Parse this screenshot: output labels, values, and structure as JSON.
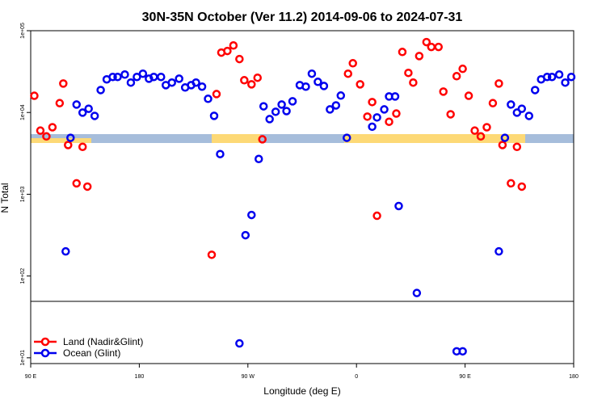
{
  "chart_data": {
    "type": "scatter",
    "title": "30N-35N October (Ver 11.2)   2014-09-06 to 2024-07-31",
    "x_label": "Longitude (deg E)",
    "y_label": "N Total",
    "log_y": true,
    "legend": "bottom-left",
    "xlim": [
      90,
      540
    ],
    "xticks": [
      {
        "value": 90,
        "label": "90 E"
      },
      {
        "value": 180,
        "label": "180"
      },
      {
        "value": 270,
        "label": "90 W"
      },
      {
        "value": 360,
        "label": "0"
      },
      {
        "value": 450,
        "label": "90 E"
      },
      {
        "value": 540,
        "label": "180"
      }
    ],
    "ylim": [
      8.5,
      100000
    ],
    "yticks": [
      {
        "value": 10,
        "label": "1e+01"
      },
      {
        "value": 100,
        "label": "1e+02"
      },
      {
        "value": 1000,
        "label": "1e+03"
      },
      {
        "value": 10000,
        "label": "1e+04"
      },
      {
        "value": 100000,
        "label": "1e+05"
      }
    ],
    "series": [
      {
        "name": "Land (Nadir&Glint)",
        "color": "#ff0000",
        "x": [
          93,
          98,
          103,
          108,
          114,
          117,
          121,
          128,
          133,
          137,
          240,
          244,
          248,
          253,
          258,
          263,
          267,
          273,
          278,
          282,
          353,
          357,
          363,
          369,
          373,
          377,
          387,
          393,
          398,
          403,
          407,
          412,
          418,
          422,
          428,
          432,
          438,
          443,
          448,
          453,
          458,
          463,
          468,
          473,
          478,
          481,
          488,
          493,
          497
        ],
        "values": [
          16000,
          6000,
          5100,
          6600,
          13000,
          22600,
          4000,
          1360,
          3800,
          1240,
          182,
          16800,
          54000,
          56500,
          66000,
          45000,
          24800,
          22100,
          26600,
          4700,
          29800,
          40000,
          22100,
          8900,
          13400,
          546,
          7700,
          9700,
          55000,
          30500,
          23200,
          49000,
          72600,
          63300,
          63300,
          18000,
          9500,
          27800,
          34200,
          16000,
          6000,
          5100,
          6600,
          13000,
          22600,
          4000,
          1360,
          3800,
          1240
        ]
      },
      {
        "name": "Ocean (Glint)",
        "color": "#0000ee",
        "x": [
          119,
          123,
          128,
          133,
          138,
          143,
          148,
          153,
          158,
          162,
          168,
          173,
          178,
          183,
          188,
          192,
          198,
          202,
          207,
          213,
          218,
          223,
          227,
          232,
          237,
          242,
          247,
          263,
          268,
          273,
          279,
          283,
          288,
          293,
          298,
          302,
          307,
          313,
          318,
          323,
          328,
          333,
          338,
          343,
          347,
          352,
          373,
          377,
          383,
          387,
          392,
          395,
          410,
          443,
          448,
          478,
          483,
          488,
          493,
          497,
          503,
          508,
          513,
          518,
          522,
          528,
          533,
          538
        ],
        "values": [
          200,
          4900,
          12500,
          9950,
          11100,
          9080,
          18800,
          25400,
          27200,
          27200,
          29100,
          23200,
          27200,
          29800,
          25900,
          27200,
          27200,
          21600,
          23200,
          25900,
          20200,
          21600,
          23200,
          20700,
          14700,
          9100,
          3100,
          15,
          316,
          558,
          2700,
          11900,
          8300,
          10200,
          12500,
          10400,
          13700,
          21600,
          20700,
          29800,
          23700,
          21100,
          10900,
          12200,
          16100,
          4900,
          6700,
          8700,
          10900,
          15700,
          15700,
          718,
          62,
          12,
          12,
          200,
          4900,
          12500,
          9950,
          11100,
          9080,
          18800,
          25400,
          27200,
          27200,
          29100,
          23200,
          27200
        ]
      }
    ]
  }
}
